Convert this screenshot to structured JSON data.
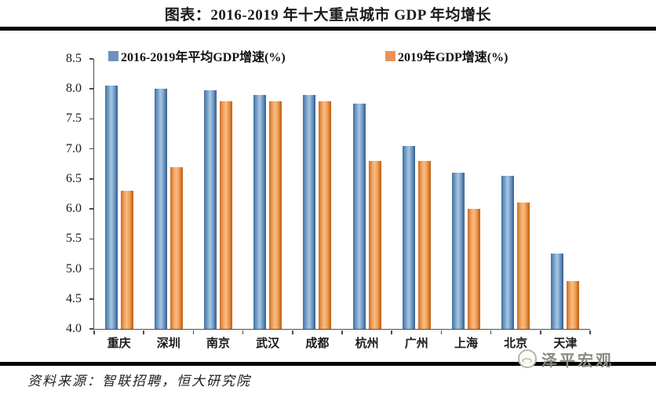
{
  "page": {
    "title": "图表：2016-2019 年十大重点城市 GDP 年均增长",
    "source_note": "资料来源：智联招聘，恒大研究院",
    "watermark_text": "泽平宏观"
  },
  "chart_data": {
    "type": "bar",
    "title": "图表：2016-2019 年十大重点城市 GDP 年均增长",
    "categories": [
      "重庆",
      "深圳",
      "南京",
      "武汉",
      "成都",
      "杭州",
      "广州",
      "上海",
      "北京",
      "天津"
    ],
    "series": [
      {
        "name": "2016-2019年平均GDP增速(%)",
        "color": "#6d92bf",
        "values": [
          8.05,
          8.0,
          7.98,
          7.9,
          7.9,
          7.75,
          7.05,
          6.6,
          6.55,
          5.25
        ]
      },
      {
        "name": "2019年GDP增速(%)",
        "color": "#ea9355",
        "values": [
          6.3,
          6.7,
          7.8,
          7.8,
          7.8,
          6.8,
          6.8,
          6.0,
          6.1,
          4.8
        ]
      }
    ],
    "xlabel": "",
    "ylabel": "",
    "ylim": [
      4.0,
      8.5
    ],
    "ytick_step": 0.5,
    "grid": false,
    "legend_position": "top"
  }
}
